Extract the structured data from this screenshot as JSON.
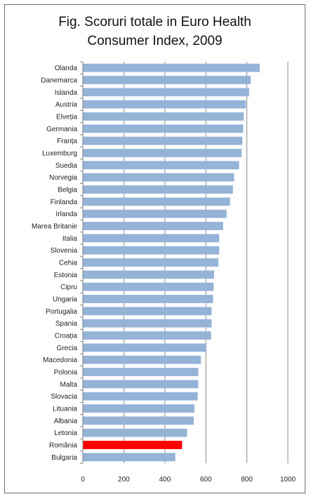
{
  "chart_data": {
    "type": "bar",
    "orientation": "horizontal",
    "title_lines": [
      "Fig. Scoruri totale in Euro Health",
      "Consumer Index,  2009"
    ],
    "categories": [
      "Olanda",
      "Danemarca",
      "Islanda",
      "Austria",
      "Elveția",
      "Germania",
      "Franța",
      "Luxemburg",
      "Suedia",
      "Norvegia",
      "Belgia",
      "Finlanda",
      "Irlanda",
      "Marea Britanie",
      "Italia",
      "Slovenia",
      "Cehia",
      "Estonia",
      "Cipru",
      "Ungaria",
      "Portugalia",
      "Spania",
      "Croația",
      "Grecia",
      "Macedonia",
      "Polonia",
      "Malta",
      "Slovacia",
      "Lituania",
      "Albania",
      "Letonia",
      "România",
      "Bulgaria"
    ],
    "values": [
      863,
      819,
      811,
      795,
      785,
      782,
      778,
      774,
      762,
      738,
      732,
      718,
      701,
      684,
      665,
      665,
      661,
      640,
      638,
      635,
      628,
      628,
      625,
      603,
      576,
      563,
      563,
      560,
      544,
      541,
      508,
      484,
      451
    ],
    "xlim": [
      0,
      1000
    ],
    "xticks": [
      0,
      200,
      400,
      600,
      800,
      1000
    ],
    "grid": true,
    "bar_color": "#95b3d7",
    "highlight_color": "#ff0000",
    "highlight_category": "România"
  }
}
